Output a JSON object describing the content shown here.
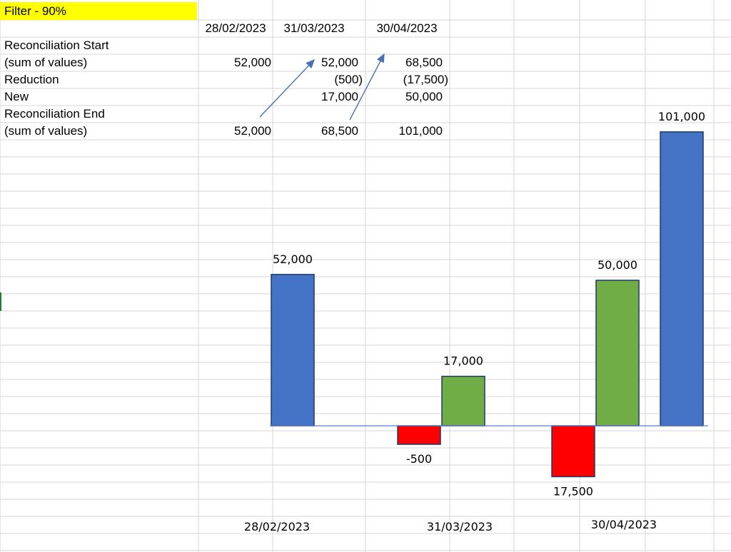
{
  "sheet": {
    "filter_label": "Filter - 90%",
    "header_dates": [
      "28/02/2023",
      "31/03/2023",
      "30/04/2023"
    ],
    "rows": [
      {
        "label": "Reconciliation Start",
        "values": [
          "",
          "",
          ""
        ]
      },
      {
        "label": "(sum of values)",
        "values": [
          "52,000",
          "52,000",
          "68,500"
        ]
      },
      {
        "label": "Reduction",
        "values": [
          "",
          "(500)",
          "(17,500)"
        ]
      },
      {
        "label": "New",
        "values": [
          "",
          "17,000",
          "50,000"
        ]
      },
      {
        "label": "Reconciliation End",
        "values": [
          "",
          "",
          ""
        ]
      },
      {
        "label": "(sum of values)",
        "values": [
          "52,000",
          "68,500",
          "101,000"
        ]
      }
    ]
  },
  "chart_data": {
    "type": "bar",
    "title": "",
    "categories": [
      "28/02/2023",
      "31/03/2023",
      "30/04/2023"
    ],
    "bars": [
      {
        "category": "28/02/2023",
        "kind": "total",
        "value": 52000,
        "label": "52,000"
      },
      {
        "category": "31/03/2023",
        "kind": "reduction",
        "value": -500,
        "label": "-500"
      },
      {
        "category": "31/03/2023",
        "kind": "new",
        "value": 17000,
        "label": "17,000"
      },
      {
        "category": "30/04/2023",
        "kind": "reduction",
        "value": -17500,
        "label": "17,500"
      },
      {
        "category": "30/04/2023",
        "kind": "new",
        "value": 50000,
        "label": "50,000"
      },
      {
        "category": "30/04/2023",
        "kind": "total",
        "value": 101000,
        "label": "101,000"
      }
    ],
    "colors": {
      "total": "#4472c4",
      "new": "#70ad47",
      "reduction": "#ff0000",
      "baseline": "#5b7fc4",
      "arrow": "#4a6fb5"
    },
    "grid": true,
    "legend": "none"
  }
}
